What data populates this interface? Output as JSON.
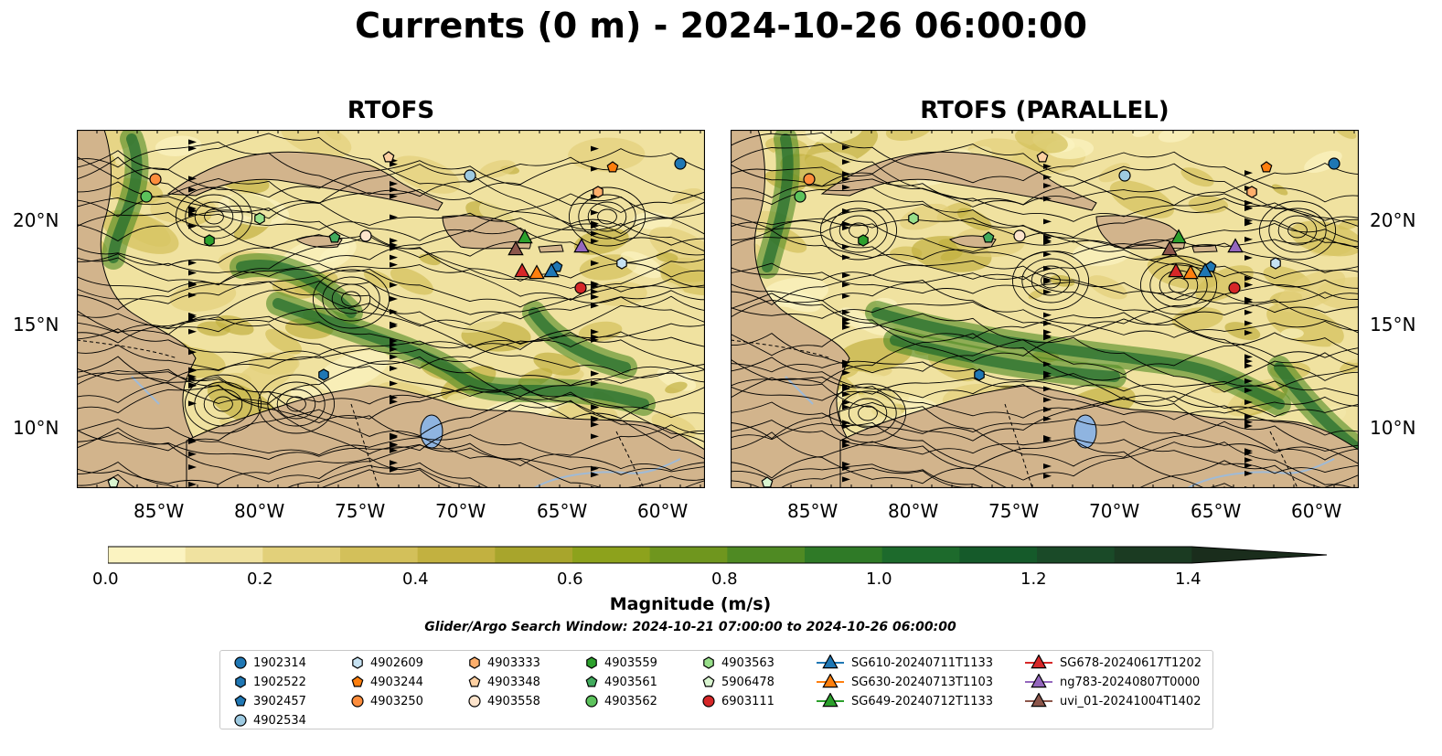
{
  "title": "Currents (0 m) - 2024-10-26 06:00:00",
  "panels": [
    {
      "title": "RTOFS"
    },
    {
      "title": "RTOFS (PARALLEL)"
    }
  ],
  "axes": {
    "lon_ticks": [
      "85°W",
      "80°W",
      "75°W",
      "70°W",
      "65°W",
      "60°W"
    ],
    "lat_ticks": [
      "20°N",
      "15°N",
      "10°N"
    ]
  },
  "colorbar": {
    "label": "Magnitude (m/s)",
    "ticks": [
      "0.0",
      "0.2",
      "0.4",
      "0.6",
      "0.8",
      "1.0",
      "1.2",
      "1.4"
    ],
    "range": [
      0,
      1.5
    ],
    "colors": [
      "#fbf3c1",
      "#f0e2a0",
      "#e2d07a",
      "#d3c05a",
      "#c2b140",
      "#a8a52c",
      "#8da21c",
      "#6f961e",
      "#4f8a23",
      "#2f7a27",
      "#1d6a2c",
      "#155a2a",
      "#1a4a28",
      "#1b3b22",
      "#1a2d1c"
    ]
  },
  "search_window": "Glider/Argo Search Window: 2024-10-21 07:00:00 to 2024-10-26 06:00:00",
  "legend": [
    {
      "label": "1902314",
      "marker": "circle",
      "color": "#1f77b4"
    },
    {
      "label": "1902522",
      "marker": "hexagon",
      "color": "#1f77b4"
    },
    {
      "label": "3902457",
      "marker": "pentagon",
      "color": "#1f77b4"
    },
    {
      "label": "4902534",
      "marker": "circle",
      "color": "#9ecae1"
    },
    {
      "label": "4902609",
      "marker": "hexagon",
      "color": "#c6e2f2"
    },
    {
      "label": "4903244",
      "marker": "pentagon",
      "color": "#ff7f0e"
    },
    {
      "label": "4903250",
      "marker": "circle",
      "color": "#fd8d3c"
    },
    {
      "label": "4903333",
      "marker": "hexagon",
      "color": "#fdae6b"
    },
    {
      "label": "4903348",
      "marker": "pentagon",
      "color": "#fdd0a2"
    },
    {
      "label": "4903558",
      "marker": "circle",
      "color": "#fde4cc"
    },
    {
      "label": "4903559",
      "marker": "hexagon",
      "color": "#2ca02c"
    },
    {
      "label": "4903561",
      "marker": "pentagon",
      "color": "#41ab5d"
    },
    {
      "label": "4903562",
      "marker": "circle",
      "color": "#5cc25c"
    },
    {
      "label": "4903563",
      "marker": "hexagon",
      "color": "#98df8a"
    },
    {
      "label": "5906478",
      "marker": "pentagon",
      "color": "#d9f5d0"
    },
    {
      "label": "6903111",
      "marker": "circle",
      "color": "#d62728"
    },
    {
      "label": "SG610-20240711T1133",
      "marker": "triangle",
      "color": "#1f77b4"
    },
    {
      "label": "SG630-20240713T1103",
      "marker": "triangle",
      "color": "#ff7f0e"
    },
    {
      "label": "SG649-20240712T1133",
      "marker": "triangle",
      "color": "#2ca02c"
    },
    {
      "label": "SG678-20240617T1202",
      "marker": "triangle",
      "color": "#d62728"
    },
    {
      "label": "ng783-20240807T0000",
      "marker": "triangle",
      "color": "#9467bd"
    },
    {
      "label": "uvi_01-20241004T1402",
      "marker": "triangle",
      "color": "#8c564b"
    }
  ],
  "map_colors": {
    "land": "#d2b48c",
    "lake": "#8fb4e0",
    "river": "#9fbad6"
  }
}
